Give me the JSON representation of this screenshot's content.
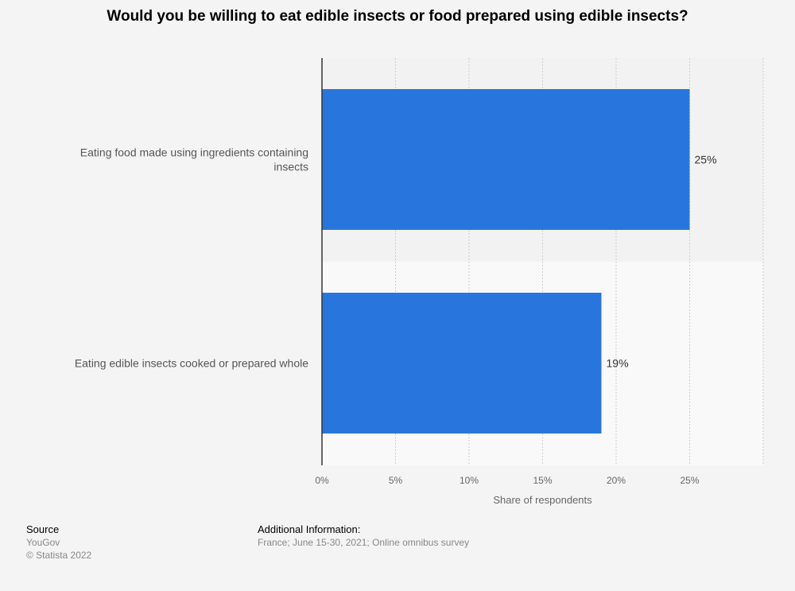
{
  "chart_data": {
    "type": "bar",
    "orientation": "horizontal",
    "title": "Would you be willing to eat edible insects or food prepared using edible insects?",
    "categories": [
      "Eating food made using ingredients containing insects",
      "Eating edible insects cooked or prepared whole"
    ],
    "category_label_lines": [
      [
        "Eating food made using ingredients containing",
        "insects"
      ],
      [
        "Eating edible insects cooked or prepared whole"
      ]
    ],
    "values": [
      25,
      19
    ],
    "value_labels": [
      "25%",
      "19%"
    ],
    "xlabel": "Share of respondents",
    "ylabel": "",
    "xlim": [
      0,
      30
    ],
    "xticks": [
      0,
      5,
      10,
      15,
      20,
      25
    ],
    "xtick_labels": [
      "0%",
      "5%",
      "10%",
      "15%",
      "20%",
      "25%"
    ],
    "grid": true,
    "bar_color": "#2876dd"
  },
  "footer": {
    "source_heading": "Source",
    "source_name": "YouGov",
    "copyright": "© Statista 2022",
    "info_heading": "Additional Information:",
    "info_text": "France; June 15-30, 2021; Online omnibus survey"
  }
}
